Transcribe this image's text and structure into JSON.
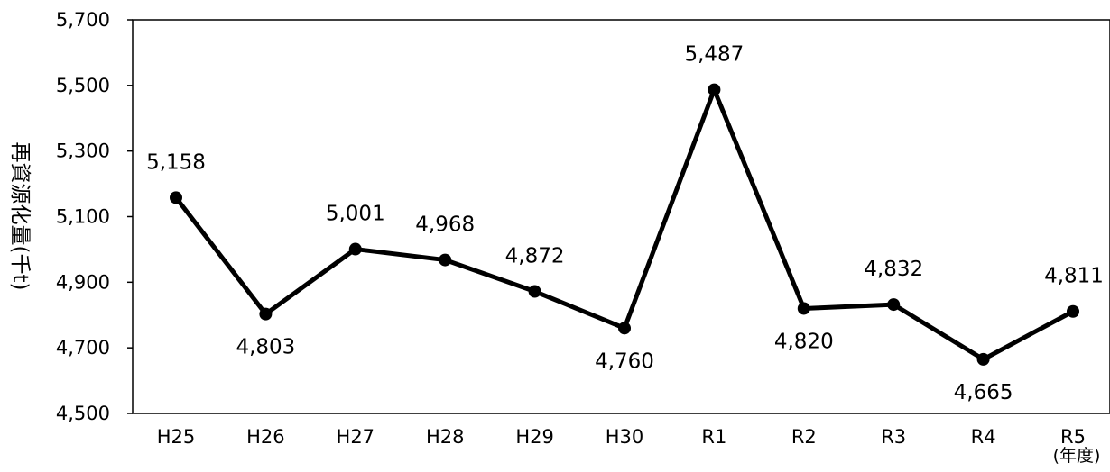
{
  "chart_data": {
    "type": "line",
    "title": "",
    "xlabel": "",
    "ylabel": "再資源化量(千t)",
    "x_unit_label": "(年度)",
    "categories": [
      "H25",
      "H26",
      "H27",
      "H28",
      "H29",
      "H30",
      "R1",
      "R2",
      "R3",
      "R4",
      "R5"
    ],
    "series": [
      {
        "values": [
          5158,
          4803,
          5001,
          4968,
          4872,
          4760,
          5487,
          4820,
          4832,
          4665,
          4811
        ],
        "data_labels": [
          "5,158",
          "4,803",
          "5,001",
          "4,968",
          "4,872",
          "4,760",
          "5,487",
          "4,820",
          "4,832",
          "4,665",
          "4,811"
        ],
        "label_positions": [
          "above",
          "below",
          "above",
          "above",
          "above",
          "below",
          "above",
          "below",
          "above",
          "below",
          "above"
        ]
      }
    ],
    "ylim": [
      4500,
      5700
    ],
    "yticks": [
      4500,
      4700,
      4900,
      5100,
      5300,
      5500,
      5700
    ],
    "ytick_labels": [
      "4,500",
      "4,700",
      "4,900",
      "5,100",
      "5,300",
      "5,500",
      "5,700"
    ],
    "grid": false,
    "legend": "none",
    "colors": {
      "line": "#000000",
      "marker": "#000000",
      "axis": "#000000"
    }
  }
}
